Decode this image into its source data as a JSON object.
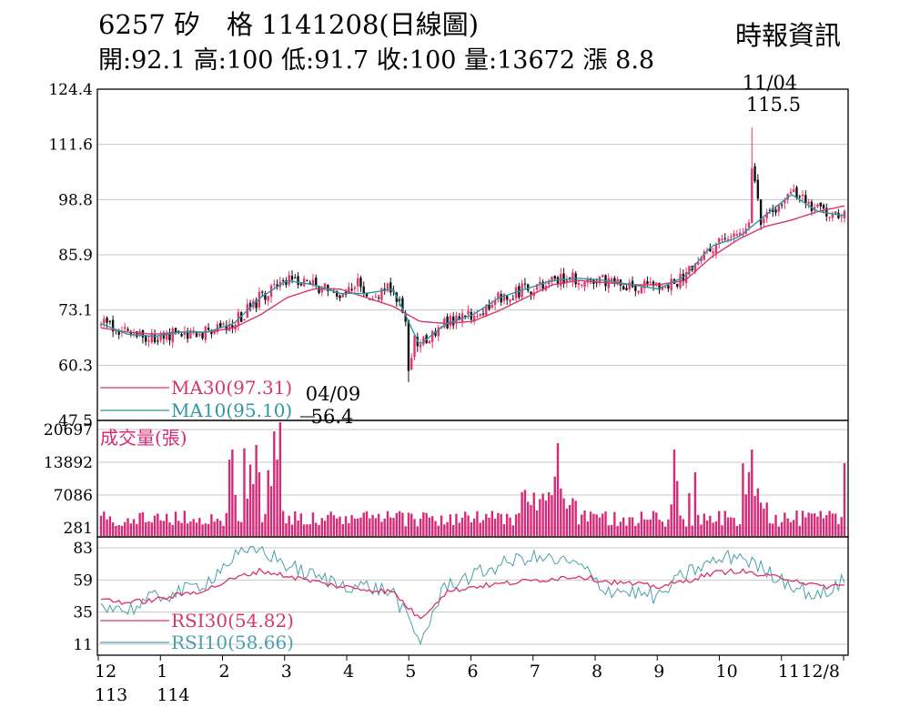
{
  "header": {
    "title": "6257 矽　格 1141208(日線圖)",
    "stats": "開:92.1 高:100 低:91.7 收:100 量:13672 漲 8.8",
    "source": "時報資訊"
  },
  "colors": {
    "up": "#e8336b",
    "down": "#111111",
    "ma30": "#d8346f",
    "ma10": "#2e96a4",
    "volume": "#d42a78",
    "rsi30": "#d8346f",
    "rsi10": "#4a9fae",
    "grid": "#c8c8c8",
    "frame": "#000000"
  },
  "chart_data": [
    {
      "type": "candlestick",
      "panel": "price",
      "y_ticks": [
        "124.4",
        "111.6",
        "98.8",
        "85.9",
        "73.1",
        "60.3",
        "47.5"
      ],
      "ylim": [
        47.5,
        124.4
      ],
      "grid": true,
      "series": [
        {
          "name": "MA30(97.31)",
          "role": "ma30",
          "values": [
            69,
            68,
            67.5,
            68,
            68,
            69,
            72,
            76,
            78,
            78,
            76,
            74,
            70.5,
            70,
            70.5,
            73,
            76,
            79,
            80,
            79.5,
            79,
            79,
            80,
            85.5,
            89.5,
            92.5,
            94,
            96,
            97.3
          ]
        },
        {
          "name": "MA10(95.10)",
          "role": "ma10",
          "values": [
            70,
            67.5,
            67,
            68,
            68,
            70,
            76,
            80,
            79,
            77,
            77,
            78,
            65,
            70,
            72,
            76,
            78,
            80,
            80.5,
            80,
            79,
            78,
            81,
            88,
            90,
            95,
            100,
            96,
            95.1
          ]
        }
      ],
      "annotations": [
        {
          "date": "11/04",
          "value": "115.5",
          "label": "high"
        },
        {
          "date": "04/09",
          "value": "56.4",
          "label": "low"
        }
      ]
    },
    {
      "type": "bar",
      "panel": "volume",
      "title": "成交量(張)",
      "y_ticks": [
        "20697",
        "13892",
        "7086",
        "281"
      ],
      "ylim": [
        281,
        20697
      ]
    },
    {
      "type": "line",
      "panel": "rsi",
      "y_ticks": [
        "83",
        "59",
        "35",
        "11"
      ],
      "ylim": [
        11,
        83
      ],
      "series": [
        {
          "name": "RSI30(54.82)",
          "role": "rsi30",
          "values": [
            45,
            42,
            44,
            48,
            52,
            60,
            66,
            62,
            58,
            54,
            52,
            50,
            30,
            50,
            54,
            56,
            58,
            60,
            62,
            58,
            56,
            54,
            58,
            64,
            66,
            62,
            60,
            54,
            54.82
          ]
        },
        {
          "name": "RSI10(58.66)",
          "role": "rsi10",
          "values": [
            42,
            36,
            46,
            50,
            58,
            76,
            82,
            70,
            62,
            56,
            54,
            50,
            12,
            56,
            62,
            70,
            76,
            74,
            70,
            52,
            50,
            46,
            64,
            72,
            78,
            66,
            56,
            46,
            58.66
          ]
        }
      ]
    }
  ],
  "x_axis": {
    "labels": [
      {
        "text": "12",
        "sub": "113"
      },
      {
        "text": "1",
        "sub": "114"
      },
      {
        "text": "2",
        "sub": ""
      },
      {
        "text": "3",
        "sub": ""
      },
      {
        "text": "4",
        "sub": ""
      },
      {
        "text": "5",
        "sub": ""
      },
      {
        "text": "6",
        "sub": ""
      },
      {
        "text": "7",
        "sub": ""
      },
      {
        "text": "8",
        "sub": ""
      },
      {
        "text": "9",
        "sub": ""
      },
      {
        "text": "10",
        "sub": ""
      },
      {
        "text": "11",
        "sub": ""
      },
      {
        "text": "12/8",
        "sub": ""
      }
    ]
  }
}
